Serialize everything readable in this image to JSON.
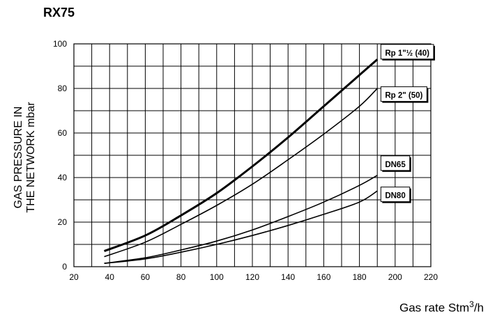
{
  "chart_data": {
    "type": "line",
    "title": "RX75",
    "ylabel_lines": [
      "GAS PRESSURE IN",
      "THE NETWORK mbar"
    ],
    "xlabel": "Gas rate Stm",
    "xlabel_sup": "3",
    "xlabel_suffix": "/h",
    "xlim": [
      20,
      220
    ],
    "ylim": [
      0,
      100
    ],
    "x_ticks": [
      20,
      40,
      60,
      80,
      100,
      120,
      140,
      160,
      180,
      200,
      220
    ],
    "y_ticks": [
      0,
      20,
      40,
      60,
      80,
      100
    ],
    "grid": true,
    "series": [
      {
        "name": "Rp 1\"½ (40)",
        "x": [
          37,
          60,
          80,
          100,
          120,
          140,
          160,
          180,
          190
        ],
        "y": [
          7,
          14,
          23,
          33,
          45,
          58,
          72,
          86,
          93
        ],
        "emphasis": true,
        "label_at": [
          192,
          96
        ]
      },
      {
        "name": "Rp 2\" (50)",
        "x": [
          37,
          60,
          80,
          100,
          120,
          140,
          160,
          180,
          190
        ],
        "y": [
          4.5,
          11,
          19,
          27.5,
          37,
          48,
          59.5,
          72,
          80
        ],
        "emphasis": false,
        "label_at": [
          192,
          77
        ]
      },
      {
        "name": "DN65",
        "x": [
          37,
          60,
          80,
          100,
          120,
          140,
          160,
          180,
          190
        ],
        "y": [
          1.5,
          4,
          7.5,
          11.5,
          16.5,
          22.5,
          29,
          36.5,
          41
        ],
        "emphasis": false,
        "label_at": [
          192,
          46
        ]
      },
      {
        "name": "DN80",
        "x": [
          37,
          60,
          80,
          100,
          120,
          140,
          160,
          180,
          190
        ],
        "y": [
          1.5,
          3.5,
          6.5,
          10,
          14,
          18.5,
          23.5,
          29,
          34
        ],
        "emphasis": false,
        "label_at": [
          192,
          32
        ]
      }
    ]
  }
}
